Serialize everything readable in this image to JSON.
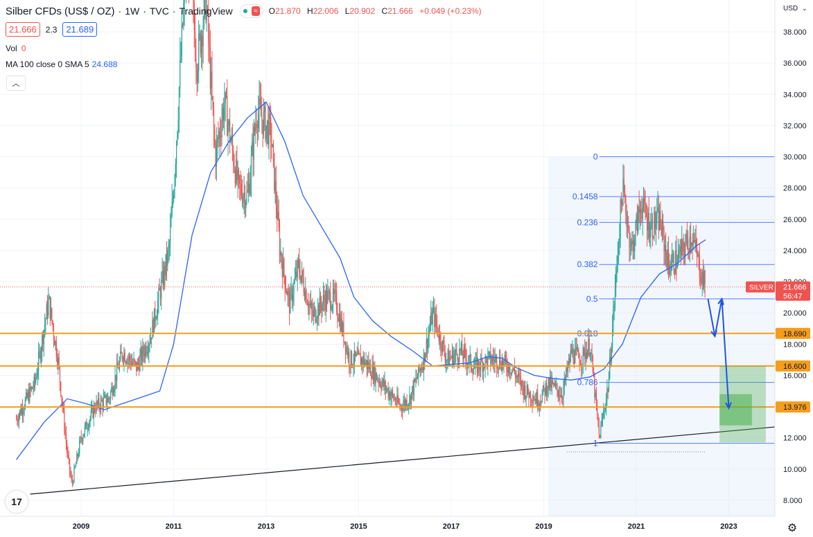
{
  "header": {
    "symbol": "Silber CFDs (US$ / OZ)",
    "interval": "1W",
    "exchange": "TVC",
    "platform": "TradingView",
    "approx_icon": "≈",
    "ohlc": {
      "o_label": "O",
      "o": "21.870",
      "h_label": "H",
      "h": "22.006",
      "l_label": "L",
      "l": "20.902",
      "c_label": "C",
      "c": "21.666",
      "change": "+0.049 (+0.23%)"
    }
  },
  "quote": {
    "bid": "21.666",
    "spread": "2.3",
    "ask": "21.689"
  },
  "volume": {
    "label": "Vol",
    "value": "0"
  },
  "ma": {
    "label": "MA 100 close 0 SMA 5",
    "value": "24.688"
  },
  "colors": {
    "up": "#26a69a",
    "down": "#ef5350",
    "ma": "#2962ff",
    "fib": "#2962ff",
    "orange": "#f59d1c",
    "price": "#ef5350",
    "green_zone": "#4caf50"
  },
  "chart_data": {
    "type": "candlestick",
    "currency": "USD",
    "y_range": [
      7.0,
      40.0
    ],
    "x_range": [
      2007.6,
      2024.2
    ],
    "y_ticks": [
      "8.000",
      "10.000",
      "12.000",
      "14.000",
      "16.000",
      "18.000",
      "20.000",
      "22.000",
      "24.000",
      "26.000",
      "28.000",
      "30.000",
      "32.000",
      "34.000",
      "36.000",
      "38.000"
    ],
    "x_ticks": [
      "2009",
      "2011",
      "2013",
      "2015",
      "2017",
      "2019",
      "2021",
      "2023"
    ],
    "price_path": [
      [
        2007.6,
        13.2
      ],
      [
        2008.0,
        15.5
      ],
      [
        2008.3,
        20.8
      ],
      [
        2008.5,
        17.0
      ],
      [
        2008.7,
        11.0
      ],
      [
        2008.8,
        9.0
      ],
      [
        2009.0,
        12.0
      ],
      [
        2009.3,
        14.0
      ],
      [
        2009.6,
        14.5
      ],
      [
        2009.9,
        17.5
      ],
      [
        2010.2,
        16.5
      ],
      [
        2010.5,
        18.5
      ],
      [
        2010.9,
        24.0
      ],
      [
        2011.0,
        28.0
      ],
      [
        2011.3,
        44.0
      ],
      [
        2011.5,
        36.0
      ],
      [
        2011.7,
        40.0
      ],
      [
        2011.9,
        30.0
      ],
      [
        2012.1,
        33.5
      ],
      [
        2012.4,
        28.0
      ],
      [
        2012.6,
        27.5
      ],
      [
        2012.8,
        33.0
      ],
      [
        2013.1,
        31.5
      ],
      [
        2013.3,
        24.0
      ],
      [
        2013.5,
        20.5
      ],
      [
        2013.7,
        23.0
      ],
      [
        2014.0,
        19.8
      ],
      [
        2014.3,
        21.0
      ],
      [
        2014.5,
        20.8
      ],
      [
        2014.8,
        17.0
      ],
      [
        2015.1,
        17.0
      ],
      [
        2015.5,
        15.5
      ],
      [
        2015.9,
        14.0
      ],
      [
        2016.1,
        14.5
      ],
      [
        2016.4,
        17.0
      ],
      [
        2016.6,
        20.0
      ],
      [
        2016.9,
        17.0
      ],
      [
        2017.2,
        17.5
      ],
      [
        2017.5,
        16.5
      ],
      [
        2017.8,
        17.0
      ],
      [
        2018.0,
        17.0
      ],
      [
        2018.3,
        16.5
      ],
      [
        2018.6,
        15.0
      ],
      [
        2018.9,
        14.4
      ],
      [
        2019.1,
        15.5
      ],
      [
        2019.4,
        14.8
      ],
      [
        2019.6,
        17.5
      ],
      [
        2019.8,
        17.0
      ],
      [
        2020.0,
        18.0
      ],
      [
        2020.2,
        12.0
      ],
      [
        2020.4,
        15.5
      ],
      [
        2020.6,
        24.0
      ],
      [
        2020.7,
        28.0
      ],
      [
        2020.9,
        24.0
      ],
      [
        2021.1,
        27.0
      ],
      [
        2021.3,
        25.5
      ],
      [
        2021.5,
        26.0
      ],
      [
        2021.7,
        23.0
      ],
      [
        2021.9,
        23.5
      ],
      [
        2022.2,
        25.0
      ],
      [
        2022.4,
        22.5
      ],
      [
        2022.5,
        21.7
      ]
    ],
    "ma_path": [
      [
        2007.6,
        10.6
      ],
      [
        2008.2,
        13.0
      ],
      [
        2008.7,
        14.5
      ],
      [
        2009.1,
        14.2
      ],
      [
        2009.5,
        13.8
      ],
      [
        2009.9,
        14.2
      ],
      [
        2010.3,
        14.6
      ],
      [
        2010.7,
        15.0
      ],
      [
        2011.0,
        18.0
      ],
      [
        2011.4,
        25.0
      ],
      [
        2011.8,
        29.0
      ],
      [
        2012.2,
        31.0
      ],
      [
        2012.6,
        32.5
      ],
      [
        2013.0,
        33.5
      ],
      [
        2013.4,
        31.0
      ],
      [
        2013.8,
        27.5
      ],
      [
        2014.2,
        25.5
      ],
      [
        2014.6,
        23.5
      ],
      [
        2014.9,
        21.0
      ],
      [
        2015.3,
        19.5
      ],
      [
        2015.7,
        18.5
      ],
      [
        2016.2,
        17.5
      ],
      [
        2016.6,
        16.6
      ],
      [
        2017.0,
        16.7
      ],
      [
        2017.4,
        16.8
      ],
      [
        2017.8,
        17.2
      ],
      [
        2018.1,
        17.1
      ],
      [
        2018.4,
        16.5
      ],
      [
        2018.8,
        16.0
      ],
      [
        2019.2,
        15.8
      ],
      [
        2019.6,
        15.7
      ],
      [
        2020.0,
        15.9
      ],
      [
        2020.3,
        16.4
      ],
      [
        2020.7,
        18.0
      ],
      [
        2021.1,
        21.0
      ],
      [
        2021.5,
        22.5
      ],
      [
        2021.9,
        23.2
      ],
      [
        2022.3,
        24.3
      ],
      [
        2022.5,
        24.69
      ]
    ],
    "fib_levels": [
      {
        "label": "0",
        "price": 30.0
      },
      {
        "label": "0.1458",
        "price": 27.45
      },
      {
        "label": "0.236",
        "price": 25.8
      },
      {
        "label": "0.382",
        "price": 23.1
      },
      {
        "label": "0.5",
        "price": 20.9
      },
      {
        "label": "0.618",
        "price": 18.69
      },
      {
        "label": "0.786",
        "price": 15.55
      },
      {
        "label": "1",
        "price": 11.65
      }
    ],
    "orange_levels": [
      {
        "label": "18.690",
        "price": 18.69
      },
      {
        "label": "16.600",
        "price": 16.6
      },
      {
        "label": "13.976",
        "price": 13.976
      }
    ],
    "current_price": {
      "label": "SILVER",
      "value": "21.666",
      "countdown": "56:47",
      "price": 21.666
    },
    "trendline": [
      [
        2007.9,
        8.4
      ],
      [
        2024.0,
        12.7
      ]
    ],
    "dotted_low": 11.1,
    "arrows": [
      [
        [
          2022.55,
          20.9
        ],
        [
          2022.7,
          18.5
        ]
      ],
      [
        [
          2022.7,
          18.5
        ],
        [
          2022.85,
          20.9
        ]
      ],
      [
        [
          2022.85,
          20.9
        ],
        [
          2023.0,
          13.9
        ]
      ]
    ],
    "zones": [
      {
        "x0": 2022.8,
        "x1": 2023.8,
        "y0": 11.7,
        "y1": 16.6,
        "opacity": 0.35
      },
      {
        "x0": 2022.8,
        "x1": 2023.5,
        "y0": 12.8,
        "y1": 14.8,
        "opacity": 0.55
      }
    ]
  }
}
